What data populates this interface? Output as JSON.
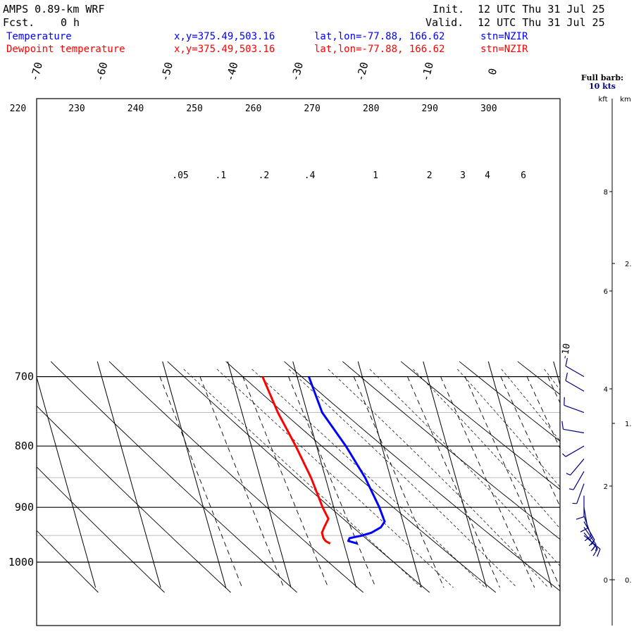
{
  "header": {
    "model": "AMPS 0.89-km WRF",
    "fcst_label": "Fcst.",
    "fcst_value": "0 h",
    "init_label": "Init.",
    "init_value": "12 UTC Thu 31 Jul 25",
    "valid_label": "Valid.",
    "valid_value": "12 UTC Thu 31 Jul 25"
  },
  "legend": [
    {
      "name": "Temperature",
      "xy": "x,y=375.49,503.16",
      "latlon": "lat,lon=-77.88, 166.62",
      "stn": "stn=NZIR",
      "color": "#0000ff"
    },
    {
      "name": "Dewpoint temperature",
      "xy": "x,y=375.49,503.16",
      "latlon": "lat,lon=-77.88, 166.62",
      "stn": "stn=NZIR",
      "color": "#ff0000"
    }
  ],
  "barb_panel": {
    "title": "Full barb:",
    "subtitle": "10 kts",
    "kft_label": "kft",
    "km_label": "km",
    "kft_ticks": [
      "8",
      "6",
      "4",
      "2",
      "0"
    ],
    "km_ticks": [
      "2.",
      "1.",
      "0."
    ],
    "barbs": [
      {
        "p": 700,
        "dir": 300,
        "spd": 10
      },
      {
        "p": 720,
        "dir": 300,
        "spd": 10
      },
      {
        "p": 750,
        "dir": 290,
        "spd": 10
      },
      {
        "p": 780,
        "dir": 280,
        "spd": 10
      },
      {
        "p": 800,
        "dir": 240,
        "spd": 5
      },
      {
        "p": 820,
        "dir": 220,
        "spd": 5
      },
      {
        "p": 840,
        "dir": 210,
        "spd": 5
      },
      {
        "p": 860,
        "dir": 200,
        "spd": 5
      },
      {
        "p": 880,
        "dir": 180,
        "spd": 10
      },
      {
        "p": 900,
        "dir": 170,
        "spd": 10
      },
      {
        "p": 915,
        "dir": 160,
        "spd": 10
      },
      {
        "p": 925,
        "dir": 150,
        "spd": 15
      },
      {
        "p": 935,
        "dir": 145,
        "spd": 15
      },
      {
        "p": 945,
        "dir": 140,
        "spd": 15
      },
      {
        "p": 950,
        "dir": 130,
        "spd": 15
      }
    ]
  },
  "chart_data": {
    "type": "line",
    "diagram": "skew-T log-p",
    "pressure_ticks": [
      "700",
      "800",
      "900",
      "1000"
    ],
    "temperature_ticks": [
      "-70",
      "-60",
      "-50",
      "-40",
      "-30",
      "-20",
      "-10",
      "0"
    ],
    "theta_labels": [
      "220",
      "230",
      "240",
      "250",
      "260",
      "270",
      "280",
      "290",
      "300"
    ],
    "mixing_ratio_labels": [
      ".05",
      ".1",
      ".2",
      ".4",
      "1",
      "2",
      "3",
      "4",
      "6"
    ],
    "annotation": "-10",
    "series": [
      {
        "name": "Temperature",
        "color": "#0000ff",
        "points": [
          {
            "p": 700,
            "t": -28.2
          },
          {
            "p": 750,
            "t": -27.7
          },
          {
            "p": 800,
            "t": -25.5
          },
          {
            "p": 850,
            "t": -23.9
          },
          {
            "p": 900,
            "t": -23.0
          },
          {
            "p": 925,
            "t": -22.8
          },
          {
            "p": 935,
            "t": -23.6
          },
          {
            "p": 945,
            "t": -25.3
          },
          {
            "p": 950,
            "t": -26.8
          },
          {
            "p": 955,
            "t": -28.9
          },
          {
            "p": 960,
            "t": -29.2
          },
          {
            "p": 965,
            "t": -27.9
          }
        ]
      },
      {
        "name": "Dewpoint temperature",
        "color": "#ff0000",
        "points": [
          {
            "p": 700,
            "t": -35.3
          },
          {
            "p": 750,
            "t": -34.5
          },
          {
            "p": 800,
            "t": -33.2
          },
          {
            "p": 850,
            "t": -32.2
          },
          {
            "p": 900,
            "t": -31.7
          },
          {
            "p": 920,
            "t": -31.3
          },
          {
            "p": 935,
            "t": -32.3
          },
          {
            "p": 945,
            "t": -32.9
          },
          {
            "p": 955,
            "t": -32.9
          },
          {
            "p": 960,
            "t": -32.7
          },
          {
            "p": 965,
            "t": -32.1
          }
        ]
      }
    ]
  }
}
